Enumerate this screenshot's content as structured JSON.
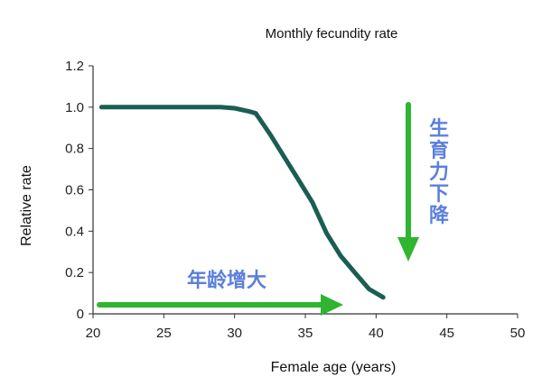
{
  "chart_data": {
    "type": "line",
    "title": "Monthly fecundity rate",
    "xlabel": "Female age (years)",
    "ylabel": "Relative rate",
    "xlim": [
      20,
      50
    ],
    "ylim": [
      0,
      1.2
    ],
    "x_ticks": [
      "20",
      "25",
      "30",
      "35",
      "40",
      "45",
      "50"
    ],
    "y_ticks": [
      "0",
      "0.2",
      "0.4",
      "0.6",
      "0.8",
      "1.0",
      "1.2"
    ],
    "grid": false,
    "series": [
      {
        "x": [
          20.6,
          22,
          24,
          26,
          28,
          29,
          30,
          31,
          31.5,
          32.5,
          33.5,
          34.5,
          35.5,
          36.5,
          37.5,
          38.5,
          39.5,
          40.5
        ],
        "y": [
          1.0,
          1.0,
          1.0,
          1.0,
          1.0,
          1.0,
          0.995,
          0.98,
          0.97,
          0.87,
          0.76,
          0.65,
          0.54,
          0.39,
          0.28,
          0.2,
          0.12,
          0.08
        ],
        "color": "#1a5e52"
      }
    ],
    "annotations": {
      "age_arrow_label": "年龄增大",
      "fertility_arrow_label": "生育力下降",
      "arrow_color": "#2fb52f",
      "label_color": "#5b7fdc"
    }
  }
}
